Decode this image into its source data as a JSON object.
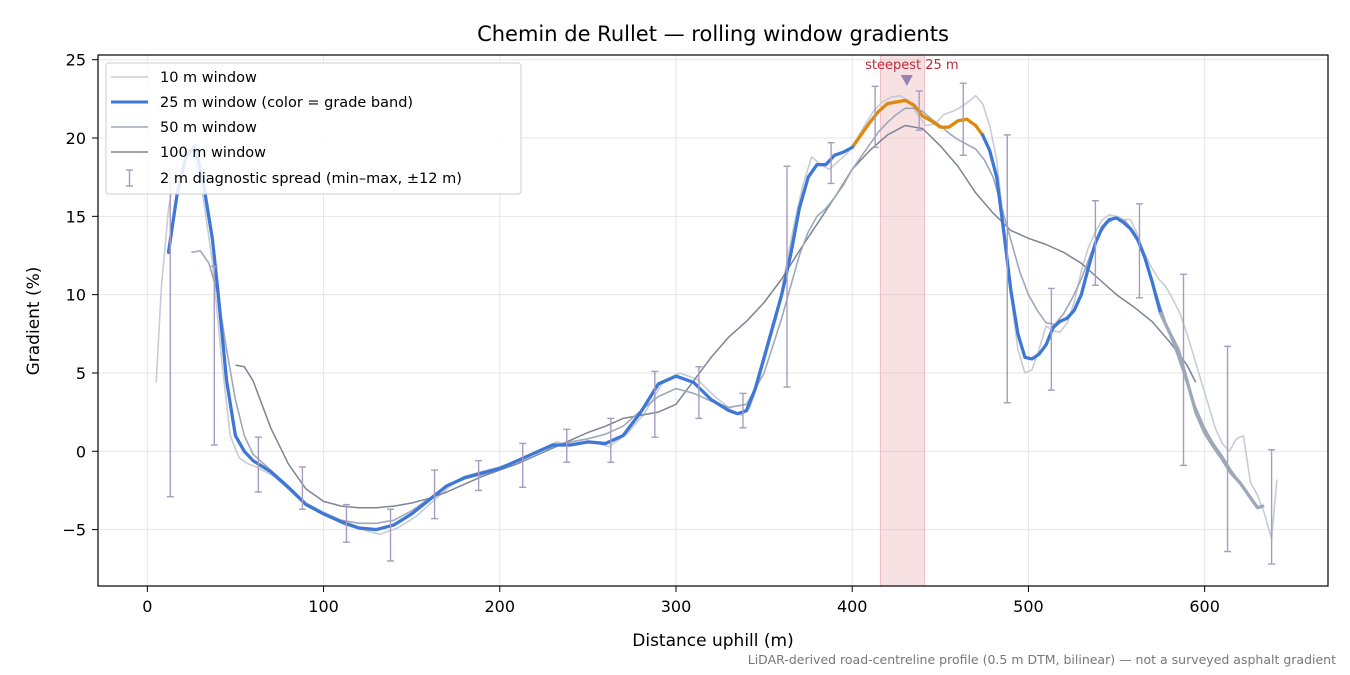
{
  "chart_data": {
    "type": "line",
    "title": "Chemin de Rullet — rolling window gradients",
    "xlabel": "Distance uphill (m)",
    "ylabel": "Gradient (%)",
    "footnote": "LiDAR-derived road-centreline profile (0.5 m DTM, bilinear) — not a surveyed asphalt gradient",
    "xlim": [
      -28,
      670
    ],
    "ylim": [
      -8.6,
      25.3
    ],
    "xticks": [
      0,
      100,
      200,
      300,
      400,
      500,
      600
    ],
    "yticks": [
      -5,
      0,
      5,
      10,
      15,
      20,
      25
    ],
    "grid": true,
    "legend_position": "top-left",
    "colors": {
      "w10": "#c7ccd5",
      "w25_band_blue": "#3d78d8",
      "w25_band_orange": "#dd8a0c",
      "w50": "#9ea8b8",
      "w100": "#7c8594",
      "errorbar": "#a79bc2",
      "highlight": "#e9a8b0",
      "annotation": "#c0283a"
    },
    "series": [
      {
        "name": "10 m window",
        "x": [
          5,
          8,
          12,
          17,
          22,
          27,
          32,
          37,
          42,
          47,
          52,
          57,
          62,
          72,
          82,
          92,
          102,
          112,
          122,
          132,
          142,
          152,
          162,
          172,
          182,
          192,
          202,
          212,
          222,
          232,
          242,
          252,
          262,
          272,
          282,
          292,
          302,
          312,
          322,
          332,
          337,
          342,
          347,
          352,
          357,
          362,
          367,
          372,
          377,
          382,
          387,
          392,
          397,
          402,
          407,
          412,
          417,
          422,
          427,
          432,
          437,
          442,
          447,
          452,
          457,
          462,
          467,
          470,
          474,
          478,
          482,
          486,
          490,
          494,
          498,
          502,
          506,
          510,
          514,
          518,
          522,
          526,
          530,
          534,
          538,
          542,
          546,
          550,
          554,
          558,
          562,
          566,
          570,
          574,
          578,
          582,
          586,
          590,
          594,
          598,
          602,
          606,
          610,
          614,
          618,
          622,
          626,
          630,
          634,
          638,
          641
        ],
        "y": [
          4.4,
          10.5,
          15.5,
          18.5,
          19.5,
          18.5,
          16.0,
          12.0,
          6.0,
          1.0,
          -0.4,
          -0.8,
          -1.0,
          -1.6,
          -2.6,
          -3.5,
          -4.1,
          -4.7,
          -5.0,
          -5.3,
          -4.9,
          -4.2,
          -3.2,
          -2.2,
          -1.6,
          -1.5,
          -1.1,
          -0.6,
          0.0,
          0.6,
          0.4,
          0.6,
          0.3,
          1.1,
          2.4,
          4.3,
          5.0,
          4.6,
          3.5,
          2.6,
          2.3,
          2.8,
          4.5,
          6.5,
          8.5,
          11.5,
          14.5,
          17.0,
          18.8,
          18.3,
          18.0,
          18.5,
          19.0,
          19.8,
          20.8,
          21.7,
          22.3,
          22.6,
          22.7,
          22.4,
          21.5,
          20.8,
          20.9,
          21.5,
          21.7,
          22.0,
          22.4,
          22.7,
          22.2,
          20.8,
          18.6,
          14.5,
          10.0,
          6.5,
          5.0,
          5.2,
          6.5,
          8.0,
          7.7,
          7.6,
          8.2,
          9.5,
          11.5,
          13.0,
          14.0,
          14.8,
          15.1,
          15.0,
          14.8,
          14.8,
          13.8,
          12.6,
          11.7,
          11.0,
          10.5,
          9.7,
          8.8,
          7.5,
          6.0,
          4.5,
          3.0,
          1.5,
          0.5,
          0.0,
          0.8,
          1.0,
          -2.0,
          -2.8,
          -4.0,
          -5.6,
          -1.8
        ]
      },
      {
        "name": "25 m window (color = grade band)",
        "x": [
          12,
          17,
          22,
          27,
          32,
          37,
          40,
          45,
          50,
          55,
          60,
          70,
          80,
          90,
          100,
          110,
          120,
          130,
          140,
          150,
          160,
          170,
          180,
          190,
          200,
          210,
          220,
          230,
          240,
          250,
          260,
          270,
          280,
          290,
          300,
          310,
          320,
          330,
          335,
          340,
          345,
          350,
          355,
          360,
          365,
          370,
          375,
          380,
          385,
          390,
          395,
          400,
          405,
          410,
          415,
          420,
          425,
          430,
          435,
          440,
          445,
          450,
          455,
          460,
          465,
          470,
          474,
          478,
          482,
          486,
          490,
          494,
          498,
          502,
          506,
          510,
          514,
          518,
          522,
          526,
          530,
          534,
          538,
          542,
          546,
          550,
          554,
          558,
          562,
          566,
          570,
          575,
          580,
          585,
          590,
          595,
          600,
          605,
          610,
          615,
          620,
          625,
          630,
          633
        ],
        "y": [
          12.7,
          16.5,
          18.8,
          19.5,
          17.0,
          13.5,
          10.3,
          4.5,
          1.0,
          0.0,
          -0.6,
          -1.3,
          -2.3,
          -3.4,
          -4.0,
          -4.5,
          -4.9,
          -5.0,
          -4.7,
          -4.0,
          -3.1,
          -2.2,
          -1.7,
          -1.4,
          -1.1,
          -0.6,
          -0.1,
          0.4,
          0.4,
          0.6,
          0.5,
          1.0,
          2.5,
          4.3,
          4.8,
          4.4,
          3.3,
          2.6,
          2.4,
          2.6,
          4.0,
          6.0,
          8.0,
          10.0,
          12.5,
          15.5,
          17.5,
          18.3,
          18.3,
          18.9,
          19.1,
          19.4,
          20.2,
          21.0,
          21.7,
          22.2,
          22.3,
          22.4,
          22.1,
          21.4,
          21.1,
          20.7,
          20.7,
          21.1,
          21.2,
          20.8,
          20.2,
          19.2,
          17.5,
          14.0,
          10.3,
          7.5,
          6.0,
          5.9,
          6.2,
          6.8,
          7.9,
          8.3,
          8.5,
          9.0,
          10.0,
          11.7,
          13.3,
          14.3,
          14.8,
          14.9,
          14.6,
          14.2,
          13.5,
          12.4,
          10.9,
          8.8,
          7.6,
          6.5,
          4.5,
          2.5,
          1.2,
          0.3,
          -0.5,
          -1.4,
          -2.0,
          -2.8,
          -3.6,
          -3.5
        ]
      },
      {
        "name": "50 m window",
        "x": [
          25,
          30,
          35,
          40,
          45,
          50,
          55,
          60,
          70,
          80,
          90,
          100,
          110,
          120,
          130,
          140,
          150,
          160,
          170,
          180,
          190,
          200,
          210,
          220,
          230,
          240,
          250,
          260,
          270,
          280,
          290,
          300,
          310,
          320,
          330,
          340,
          350,
          360,
          365,
          370,
          375,
          380,
          385,
          390,
          395,
          400,
          405,
          410,
          415,
          420,
          425,
          430,
          435,
          440,
          445,
          450,
          455,
          460,
          465,
          470,
          475,
          480,
          485,
          490,
          495,
          500,
          505,
          510,
          515,
          520,
          525,
          530,
          535,
          540,
          545,
          550,
          555,
          560,
          565,
          570,
          575,
          580,
          585,
          590,
          595,
          600,
          605,
          610,
          615,
          620,
          625,
          630
        ],
        "y": [
          12.7,
          12.8,
          12.0,
          10.0,
          6.5,
          3.3,
          1.0,
          -0.2,
          -1.2,
          -2.2,
          -3.3,
          -3.9,
          -4.4,
          -4.6,
          -4.6,
          -4.4,
          -3.8,
          -3.0,
          -2.2,
          -1.6,
          -1.3,
          -1.0,
          -0.6,
          -0.1,
          0.3,
          0.6,
          0.8,
          1.1,
          1.6,
          2.6,
          3.5,
          4.0,
          3.7,
          3.2,
          2.8,
          3.0,
          5.0,
          8.5,
          10.5,
          12.5,
          14.0,
          15.0,
          15.5,
          16.2,
          17.0,
          18.0,
          18.8,
          19.6,
          20.4,
          21.0,
          21.5,
          21.9,
          21.9,
          21.7,
          21.2,
          20.8,
          20.3,
          19.9,
          19.6,
          19.3,
          18.6,
          17.5,
          15.5,
          13.5,
          11.5,
          10.0,
          9.0,
          8.2,
          8.1,
          8.8,
          9.8,
          11.0,
          12.5,
          13.8,
          14.6,
          14.9,
          14.7,
          14.0,
          12.8,
          11.0,
          9.2,
          7.5,
          6.0,
          4.3,
          2.8,
          1.5,
          0.5,
          -0.3,
          -1.2,
          -2.0,
          -2.9,
          -3.5
        ]
      },
      {
        "name": "100 m window",
        "x": [
          50,
          55,
          60,
          65,
          70,
          80,
          90,
          100,
          110,
          120,
          130,
          140,
          150,
          160,
          170,
          180,
          190,
          200,
          210,
          220,
          230,
          240,
          250,
          260,
          270,
          280,
          290,
          300,
          310,
          320,
          330,
          340,
          350,
          360,
          370,
          380,
          390,
          400,
          410,
          420,
          430,
          440,
          450,
          460,
          470,
          480,
          490,
          500,
          510,
          520,
          530,
          540,
          550,
          560,
          570,
          580,
          590,
          595
        ],
        "y": [
          5.5,
          5.4,
          4.5,
          3.0,
          1.5,
          -0.8,
          -2.4,
          -3.2,
          -3.5,
          -3.6,
          -3.6,
          -3.5,
          -3.3,
          -3.0,
          -2.6,
          -2.1,
          -1.6,
          -1.2,
          -0.8,
          -0.3,
          0.2,
          0.7,
          1.2,
          1.6,
          2.1,
          2.3,
          2.5,
          3.0,
          4.5,
          6.0,
          7.3,
          8.3,
          9.5,
          11.0,
          12.8,
          14.5,
          16.2,
          18.0,
          19.2,
          20.2,
          20.8,
          20.6,
          19.5,
          18.2,
          16.5,
          15.2,
          14.1,
          13.6,
          13.2,
          12.7,
          12.0,
          11.0,
          10.0,
          9.2,
          8.3,
          7.0,
          5.5,
          4.4
        ]
      }
    ],
    "w25_bands": [
      {
        "from": 12,
        "to": 401,
        "color": "w25_band_blue"
      },
      {
        "from": 401,
        "to": 474,
        "color": "w25_band_orange"
      },
      {
        "from": 474,
        "to": 575,
        "color": "w25_band_blue"
      },
      {
        "from": 575,
        "to": 633,
        "color": "w50"
      }
    ],
    "errorbars": {
      "name": "2 m diagnostic spread (min–max, ±12 m)",
      "x": [
        13,
        38,
        63,
        88,
        113,
        138,
        163,
        188,
        213,
        238,
        263,
        288,
        313,
        338,
        363,
        388,
        413,
        438,
        463,
        488,
        513,
        538,
        563,
        588,
        613,
        638
      ],
      "low": [
        -2.9,
        0.4,
        -2.6,
        -3.7,
        -5.8,
        -7.0,
        -4.3,
        -2.5,
        -2.3,
        -0.7,
        -0.7,
        0.9,
        2.1,
        1.5,
        4.1,
        17.1,
        19.4,
        20.5,
        18.9,
        3.1,
        3.9,
        10.6,
        9.8,
        -0.9,
        -6.4,
        -7.2
      ],
      "high": [
        18.0,
        11.8,
        0.9,
        -1.0,
        -3.4,
        -3.7,
        -1.2,
        -0.6,
        0.5,
        1.4,
        2.1,
        5.1,
        5.4,
        3.7,
        18.2,
        19.7,
        23.3,
        23.0,
        23.5,
        20.2,
        10.4,
        16.0,
        15.8,
        11.3,
        6.7,
        0.1
      ]
    },
    "highlight": {
      "x_from": 416,
      "x_to": 441,
      "marker_x": 431,
      "marker_y": 23.7,
      "label": "steepest 25 m"
    }
  }
}
